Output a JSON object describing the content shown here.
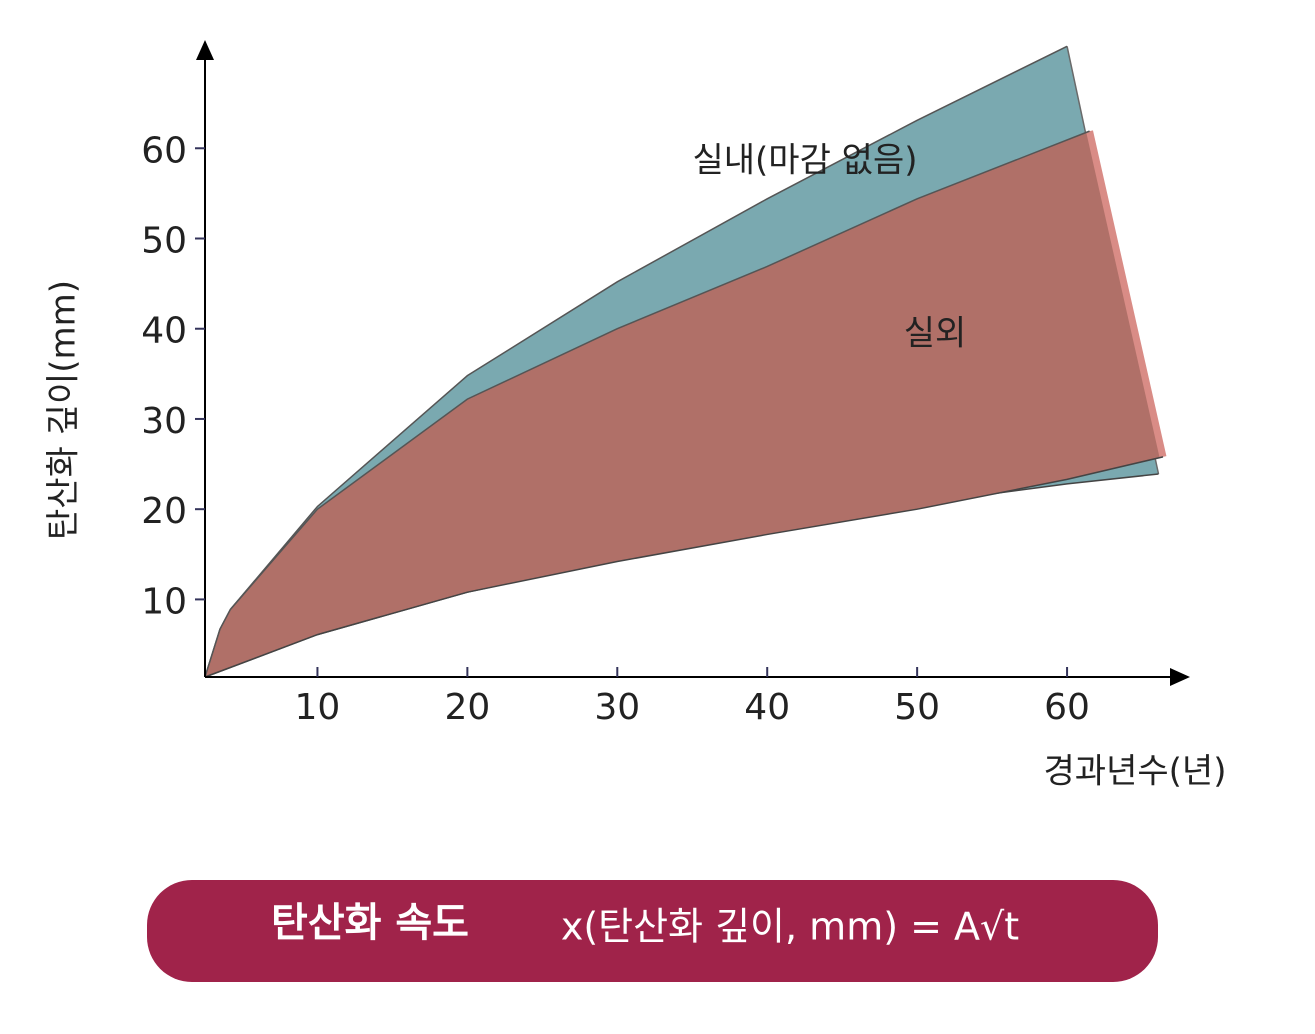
{
  "chart_data": {
    "type": "band",
    "x_label": "경과년수(년)",
    "y_label": "탄산화 깊이(mm)",
    "xlim": [
      2.5,
      68.2
    ],
    "ylim": [
      1.4,
      72
    ],
    "xticks": [
      10,
      20,
      30,
      40,
      50,
      60
    ],
    "yticks": [
      10,
      20,
      30,
      40,
      50,
      60
    ],
    "series": [
      {
        "name": "실내(마감 없음)",
        "color": "#7aa9b0",
        "upper_x": [
          2.5,
          3.5,
          4.2,
          10,
          20,
          30,
          40,
          50,
          60
        ],
        "upper_y": [
          1.4,
          6.7,
          8.9,
          20.3,
          34.8,
          45.2,
          54.4,
          63.1,
          71.3
        ],
        "lower_x": [
          2.5,
          10,
          20,
          30,
          40,
          50,
          60,
          66.1
        ],
        "lower_y": [
          1.4,
          6.1,
          10.8,
          14.4,
          17.6,
          20.6,
          22.8,
          23.9
        ]
      },
      {
        "name": "실외",
        "color": "#b07068",
        "upper_x": [
          2.5,
          3.5,
          4.2,
          10,
          20,
          30,
          40,
          50,
          61.5
        ],
        "upper_y": [
          1.4,
          6.7,
          8.9,
          20,
          32.2,
          40,
          46.9,
          54.4,
          61.9
        ],
        "lower_x": [
          2.5,
          10,
          20,
          30,
          40,
          50,
          60,
          66.4
        ],
        "lower_y": [
          1.4,
          6.1,
          10.8,
          14.2,
          17.2,
          20,
          23.3,
          25.8
        ]
      }
    ],
    "banner_title": "탄산화 속도",
    "formula": "x(탄산화 깊이, mm) = A√t"
  }
}
